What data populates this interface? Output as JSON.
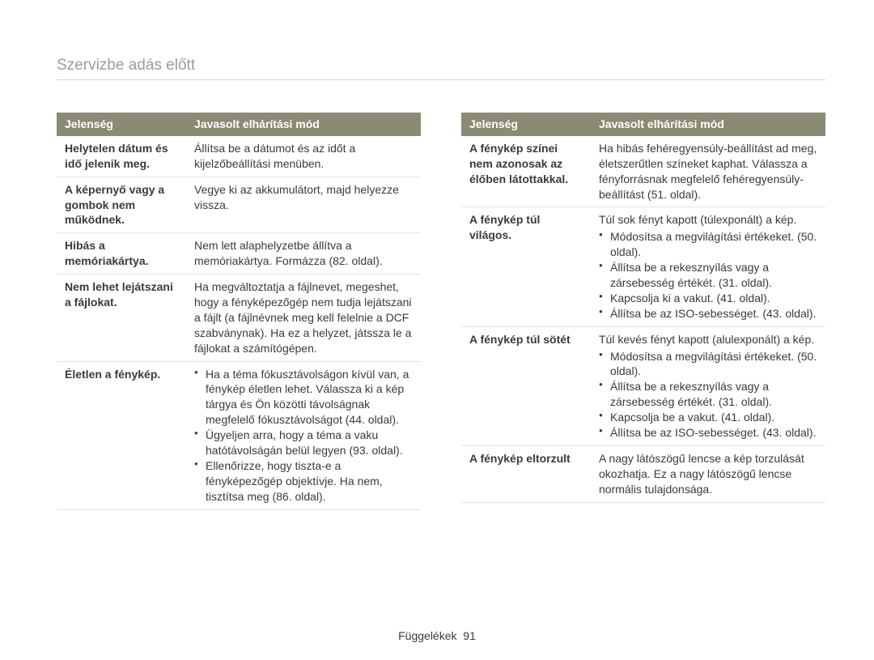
{
  "title": "Szervizbe adás előtt",
  "header": {
    "symptom": "Jelenség",
    "remedy": "Javasolt elhárítási mód"
  },
  "footer": {
    "label": "Függelékek",
    "page": "91"
  },
  "left": [
    {
      "symptom": "Helytelen dátum és idő jelenik meg.",
      "remedy_plain": "Állítsa be a dátumot és az időt a kijelzőbeállítási menüben."
    },
    {
      "symptom": "A képernyő vagy a gombok nem működnek.",
      "remedy_plain": "Vegye ki az akkumulátort, majd helyezze vissza."
    },
    {
      "symptom": "Hibás a memóriakártya.",
      "remedy_plain": "Nem lett alaphelyzetbe állítva a memóriakártya. Formázza (82. oldal)."
    },
    {
      "symptom": "Nem lehet lejátszani a fájlokat.",
      "remedy_plain": "Ha megváltoztatja a fájlnevet, megeshet, hogy a fényképezőgép nem tudja lejátszani a fájlt (a fájlnévnek meg kell felelnie a DCF szabványnak). Ha ez a helyzet, játssza le a fájlokat a számítógépen."
    },
    {
      "symptom": "Életlen a fénykép.",
      "remedy_list": [
        "Ha a téma fókusztávolságon kívül van, a fénykép életlen lehet. Válassza ki a kép tárgya és Ön közötti távolságnak megfelelő fókusztávolságot (44. oldal).",
        "Ügyeljen arra, hogy a téma a vaku hatótávolságán belül legyen (93. oldal).",
        "Ellenőrizze, hogy tiszta-e a fényképezőgép objektívje. Ha nem, tisztítsa meg (86. oldal)."
      ]
    }
  ],
  "right": [
    {
      "symptom": "A fénykép színei nem azonosak az élőben látottakkal.",
      "remedy_plain": "Ha hibás fehéregyensúly-beállítást ad meg, életszerűtlen színeket kaphat. Válassza a fényforrásnak megfelelő fehéregyensúly-beállítást (51. oldal)."
    },
    {
      "symptom": "A fénykép túl világos.",
      "remedy_intro": "Túl sok fényt kapott (túlexponált) a kép.",
      "remedy_list": [
        "Módosítsa a megvilágítási értékeket. (50. oldal).",
        "Állítsa be a rekesznyílás vagy a zársebesség értékét. (31. oldal).",
        "Kapcsolja ki a vakut. (41. oldal).",
        "Állítsa be az ISO-sebességet. (43. oldal)."
      ]
    },
    {
      "symptom": "A fénykép túl sötét",
      "remedy_intro": "Túl kevés fényt kapott (alulexponált) a kép.",
      "remedy_list": [
        "Módosítsa a megvilágítási értékeket. (50. oldal).",
        "Állítsa be a rekesznyílás vagy a zársebesség értékét. (31. oldal).",
        "Kapcsolja be a vakut. (41. oldal).",
        "Állítsa be az ISO-sebességet. (43. oldal)."
      ]
    },
    {
      "symptom": "A fénykép eltorzult",
      "remedy_plain": "A nagy látószögű lencse a kép torzulását okozhatja. Ez a nagy látószögű lencse normális tulajdonsága."
    }
  ]
}
